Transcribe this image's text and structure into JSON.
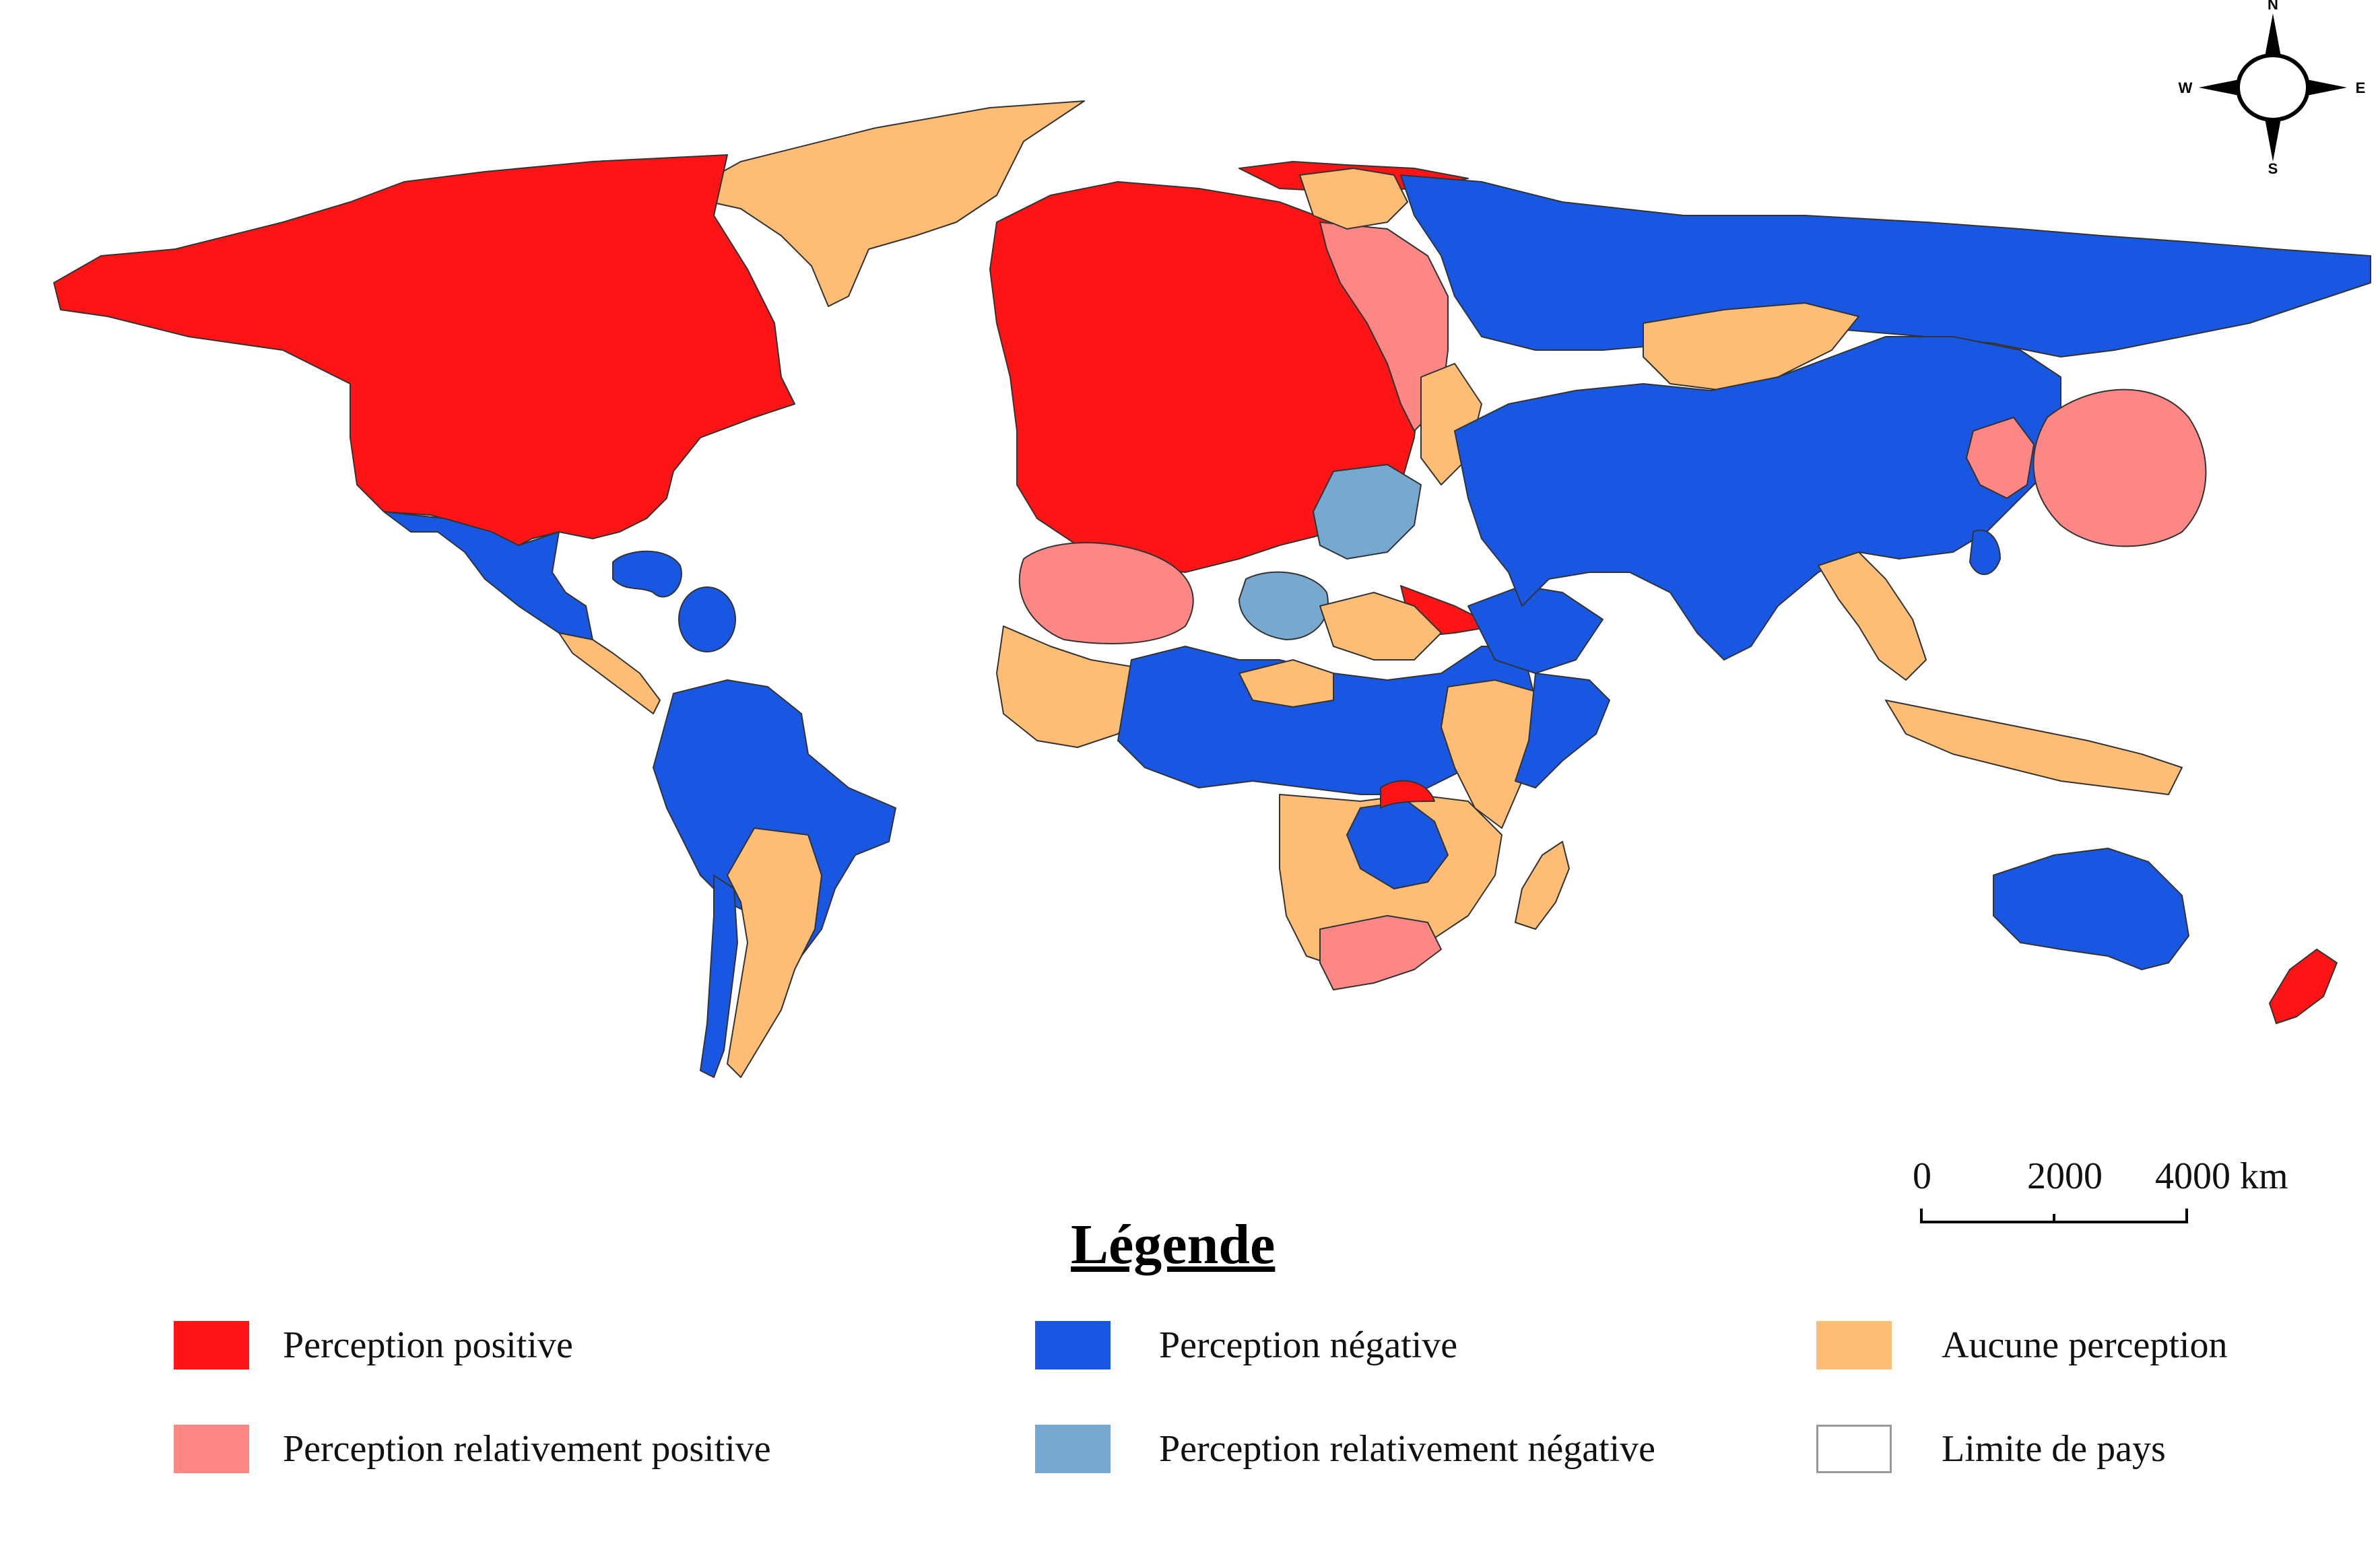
{
  "colors": {
    "positive": "#fe1414",
    "relatively_positive": "#fc8785",
    "negative": "#1857e2",
    "relatively_negative": "#77a8cf",
    "none": "#fdbd75",
    "border": "#ffffff",
    "ocean": "#ffffff"
  },
  "compass": {
    "n": "N",
    "s": "S",
    "e": "E",
    "w": "W"
  },
  "scale": {
    "zero": "0",
    "mid": "2000",
    "end": "4000 km"
  },
  "legend": {
    "title": "Légende",
    "items": [
      {
        "key": "positive",
        "label": "Perception positive"
      },
      {
        "key": "negative",
        "label": "Perception négative"
      },
      {
        "key": "none",
        "label": "Aucune perception"
      },
      {
        "key": "relatively_positive",
        "label": "Perception relativement positive"
      },
      {
        "key": "relatively_negative",
        "label": "Perception relativement négative"
      },
      {
        "key": "border",
        "label": "Limite de pays"
      }
    ]
  }
}
